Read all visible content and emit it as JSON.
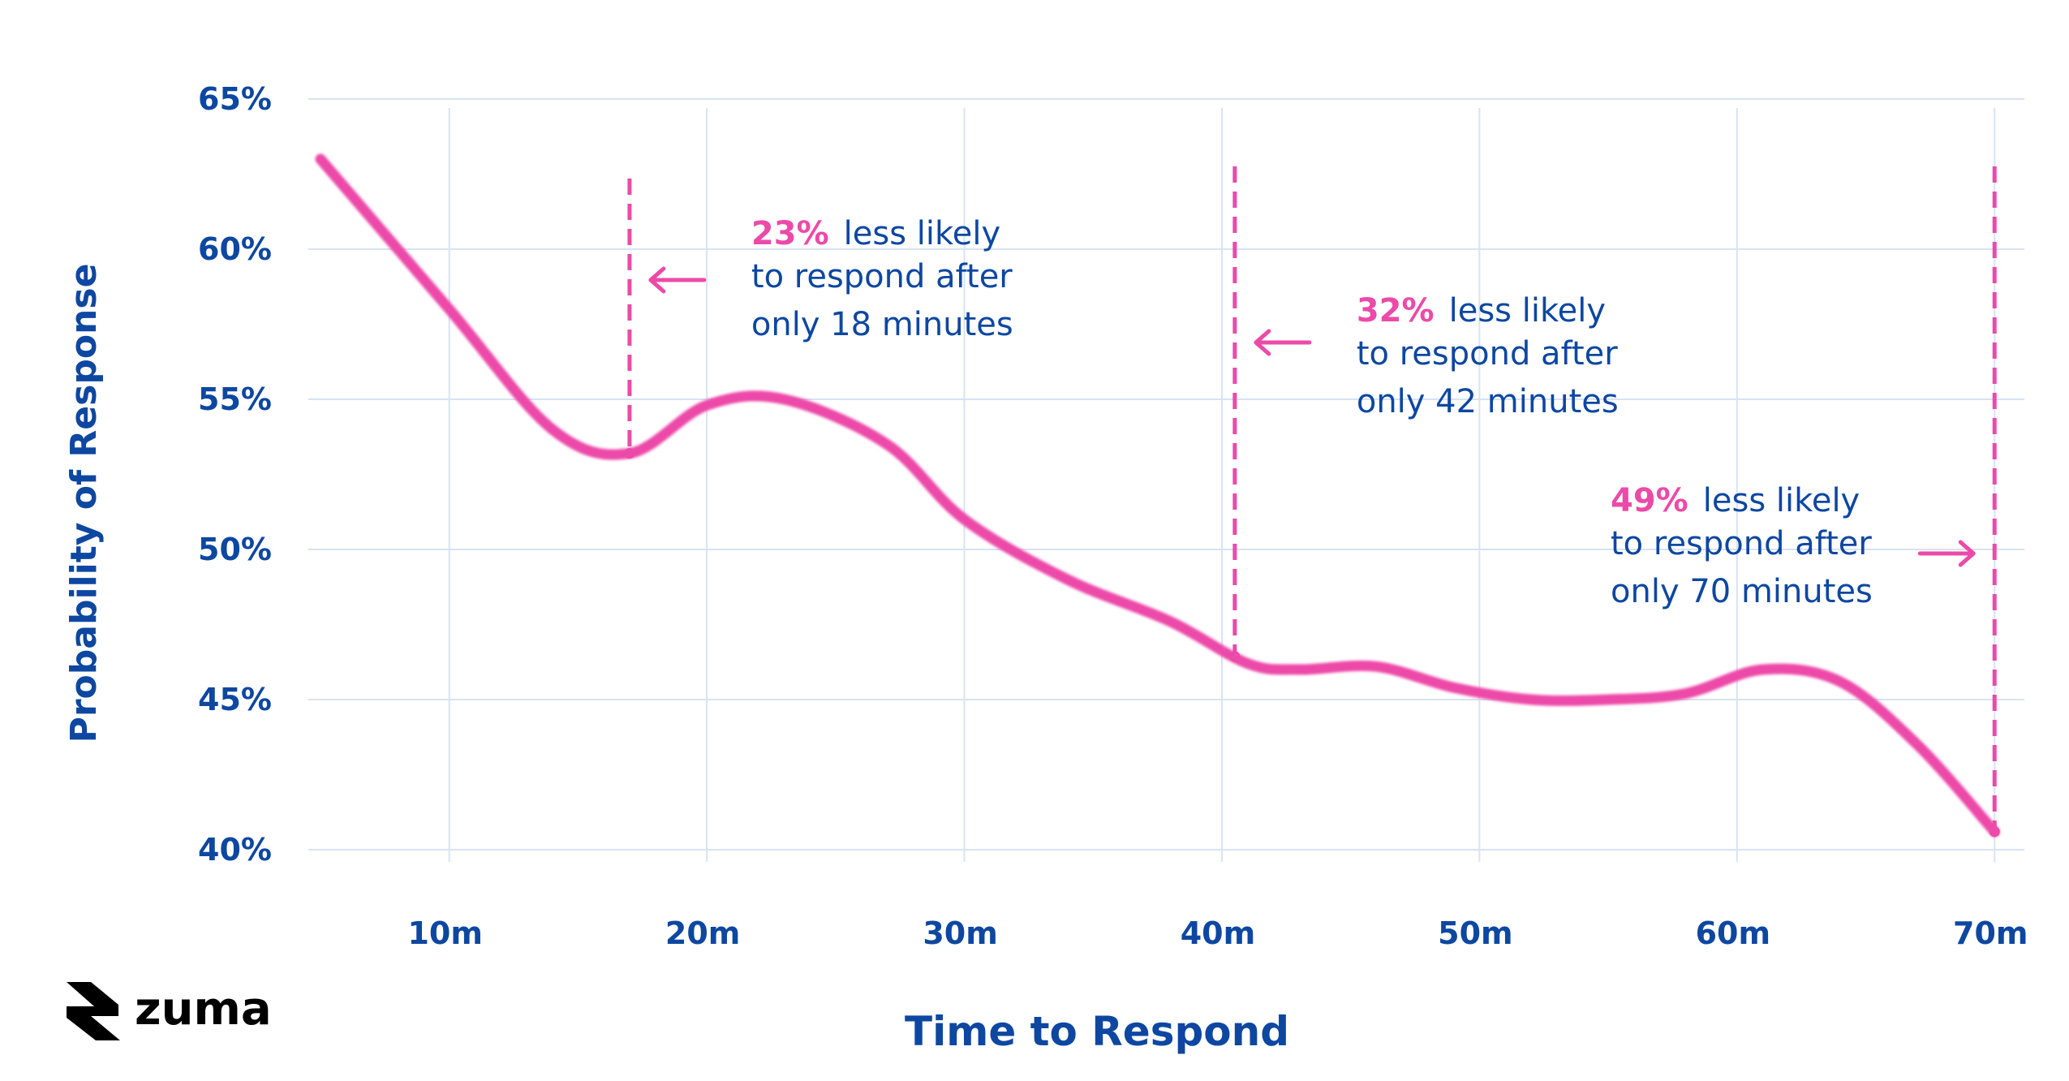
{
  "chart_data": {
    "type": "line",
    "title": "",
    "xlabel": "Time to Respond",
    "ylabel": "Probability of Response",
    "xlim": [
      5,
      71
    ],
    "ylim": [
      40,
      65
    ],
    "grid": true,
    "x_ticks": [
      10,
      20,
      30,
      40,
      50,
      60,
      70
    ],
    "x_tick_labels": [
      "10m",
      "20m",
      "30m",
      "40m",
      "50m",
      "60m",
      "70m"
    ],
    "y_ticks": [
      40,
      45,
      50,
      55,
      60,
      65
    ],
    "y_tick_labels": [
      "40%",
      "45%",
      "50%",
      "55%",
      "60%",
      "65%"
    ],
    "series": [
      {
        "color": "#ec4aa8",
        "x": [
          5,
          10,
          14,
          17,
          20,
          23,
          27,
          30,
          34,
          38,
          41,
          43,
          46,
          49,
          52,
          55,
          58,
          61,
          64,
          67,
          70
        ],
        "y": [
          63,
          58,
          54,
          53.2,
          54.8,
          55,
          53.5,
          51,
          49,
          47.6,
          46.2,
          46,
          46.1,
          45.4,
          45,
          45,
          45.2,
          46,
          45.6,
          43.5,
          40.6
        ]
      }
    ],
    "annotations": [
      {
        "x": 17,
        "percent": "23%",
        "rest": "less likely",
        "line2": "to respond after",
        "line3": "only 18 minutes"
      },
      {
        "x": 40.5,
        "percent": "32%",
        "rest": "less likely",
        "line2": "to respond after",
        "line3": "only 42 minutes"
      },
      {
        "x": 70,
        "percent": "49%",
        "rest": "less likely",
        "line2": "to respond after",
        "line3": "only 70 minutes"
      }
    ]
  },
  "logo": {
    "text": "zuma",
    "icon": "zuma-bolt-icon"
  }
}
